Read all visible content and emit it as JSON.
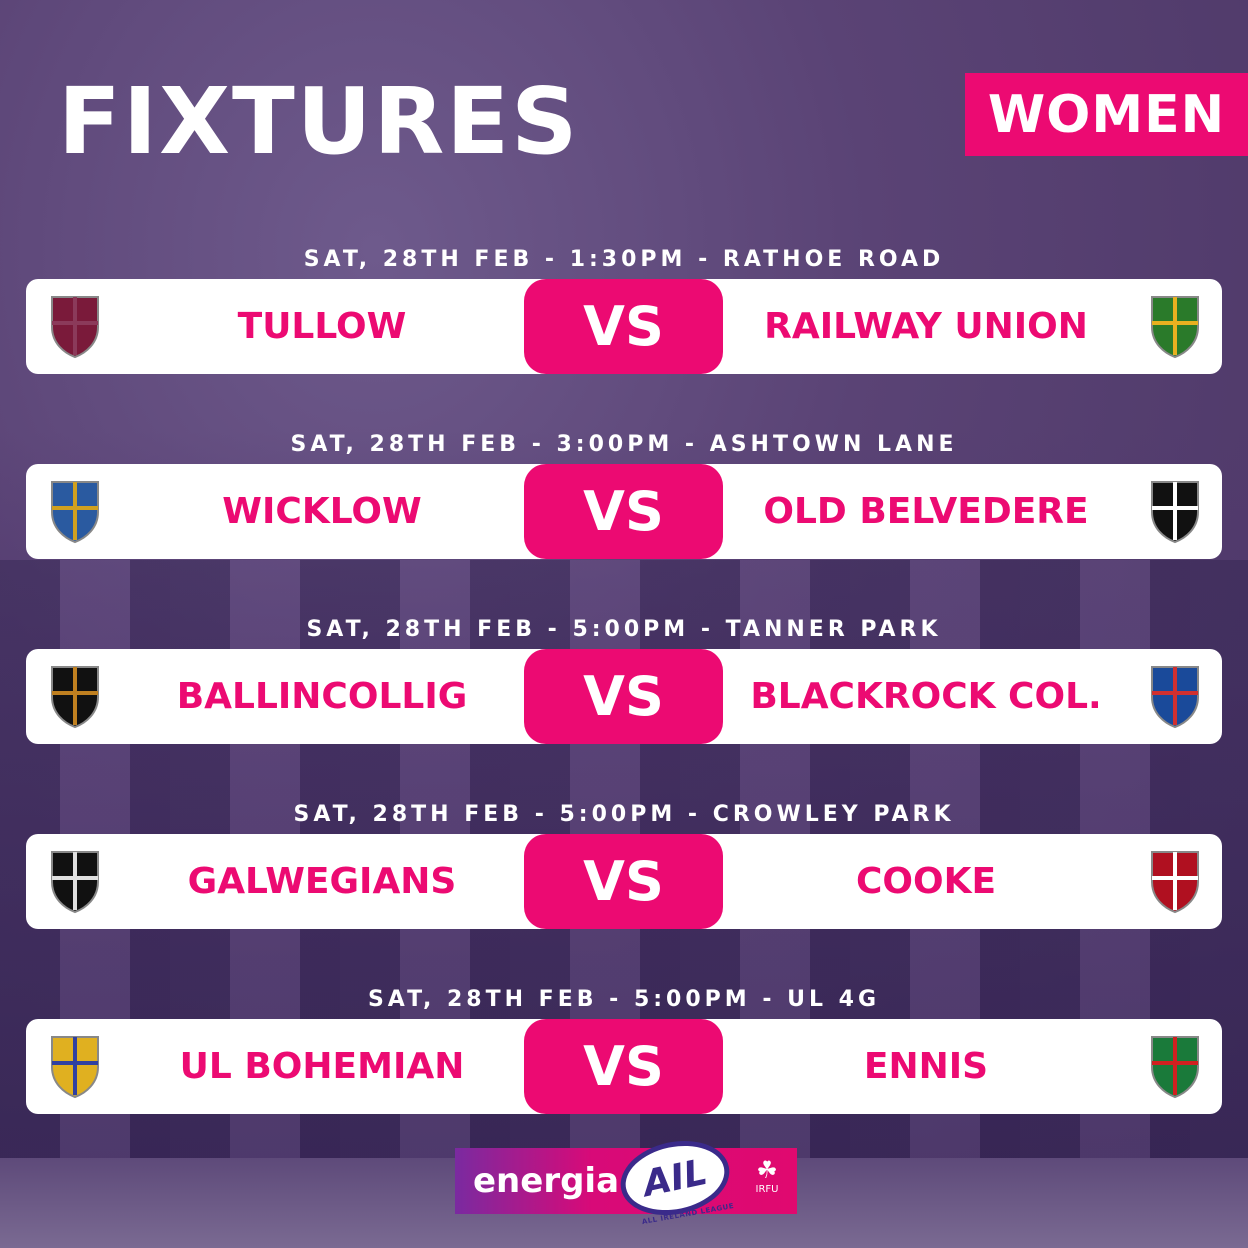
{
  "header": {
    "title": "FIXTURES",
    "category": "WOMEN"
  },
  "colors": {
    "accent": "#ec0a72",
    "background": "#5a4375"
  },
  "fixtures": [
    {
      "meta": "SAT, 28TH FEB - 1:30PM - RATHOE ROAD",
      "home": "TULLOW",
      "vs": "VS",
      "away": "RAILWAY UNION",
      "home_logo": "tullow-crest",
      "away_logo": "railway-union-crest"
    },
    {
      "meta": "SAT, 28TH FEB - 3:00PM - ASHTOWN LANE",
      "home": "WICKLOW",
      "vs": "VS",
      "away": "OLD BELVEDERE",
      "home_logo": "wicklow-crest",
      "away_logo": "old-belvedere-crest"
    },
    {
      "meta": "SAT, 28TH FEB - 5:00PM - TANNER PARK",
      "home": "BALLINCOLLIG",
      "vs": "VS",
      "away": "BLACKROCK COL.",
      "home_logo": "ballincollig-crest",
      "away_logo": "blackrock-crest"
    },
    {
      "meta": "SAT, 28TH FEB - 5:00PM - CROWLEY PARK",
      "home": "GALWEGIANS",
      "vs": "VS",
      "away": "COOKE",
      "home_logo": "galwegians-crest",
      "away_logo": "cooke-crest"
    },
    {
      "meta": "SAT, 28TH FEB - 5:00PM - UL 4G",
      "home": "UL BOHEMIAN",
      "vs": "VS",
      "away": "ENNIS",
      "home_logo": "ul-bohemian-crest",
      "away_logo": "ennis-crest"
    }
  ],
  "sponsor": {
    "brand": "energia",
    "league": "AIL",
    "league_full": "ALL IRELAND LEAGUE",
    "union": "IRFU"
  }
}
